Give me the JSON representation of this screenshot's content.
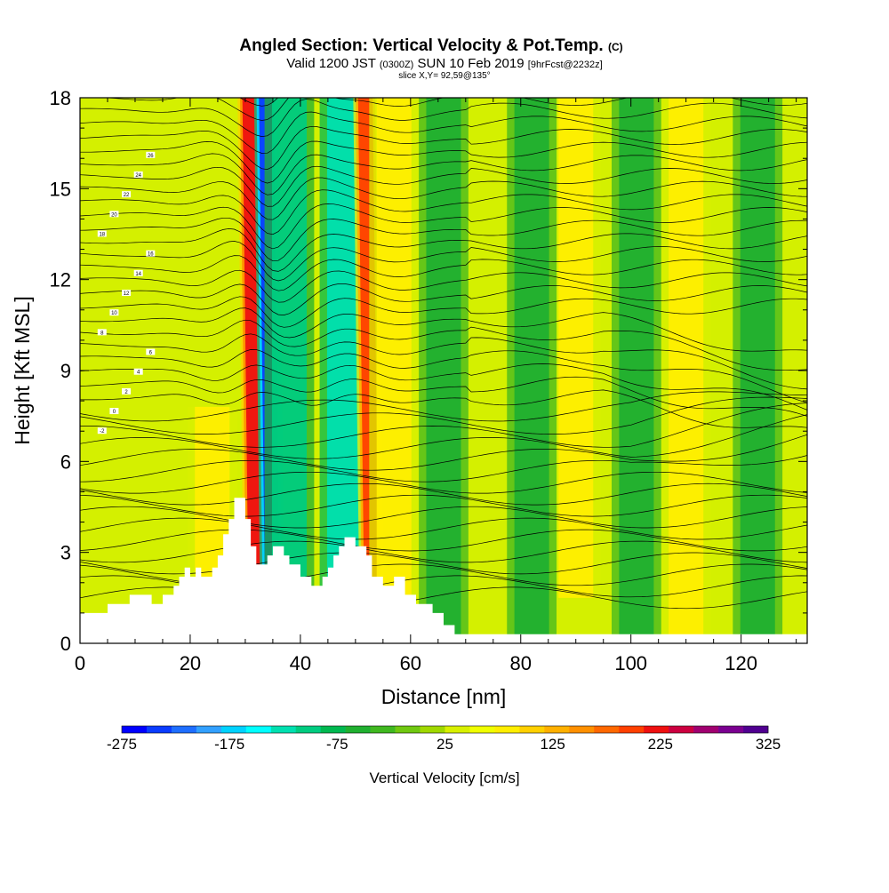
{
  "title_main": "Angled Section: Vertical Velocity & Pot.Temp.",
  "title_unit": "(C)",
  "subtitle_prefix": "Valid 1200 JST",
  "subtitle_utc": "(0300Z)",
  "subtitle_date": "SUN 10 Feb 2019",
  "subtitle_forecast": "[9hrFcst@2232z]",
  "slice_label": "slice X,Y= 92,59@135°",
  "chart_data": {
    "type": "heatmap",
    "xlabel": "Distance [nm]",
    "ylabel": "Height [Kft MSL]",
    "xlim": [
      0,
      132
    ],
    "ylim": [
      0,
      18
    ],
    "x_ticks": [
      "0",
      "20",
      "40",
      "60",
      "80",
      "100",
      "120"
    ],
    "y_ticks": [
      "0",
      "3",
      "6",
      "9",
      "12",
      "15",
      "18"
    ],
    "colorbar": {
      "label": "Vertical Velocity [cm/s]",
      "tick_labels": [
        "-275",
        "-175",
        "-75",
        "25",
        "125",
        "225",
        "325"
      ],
      "range": [
        -275,
        325
      ],
      "colors": [
        "#0000ff",
        "#0a3cff",
        "#1e6eff",
        "#32a0ff",
        "#00d2ff",
        "#00ffff",
        "#00e0b0",
        "#00cc80",
        "#00b850",
        "#20b030",
        "#40b820",
        "#70c810",
        "#a0d800",
        "#d8f000",
        "#f0ff00",
        "#ffee00",
        "#ffd000",
        "#ffb000",
        "#ff9000",
        "#ff6800",
        "#ff4000",
        "#ee1010",
        "#cc0040",
        "#a00070",
        "#7a0090",
        "#500090"
      ]
    },
    "velocity_bands": [
      {
        "x_center": 32,
        "value": 225
      },
      {
        "x_center": 35,
        "value": -250
      },
      {
        "x_center": 38,
        "value": -100
      },
      {
        "x_center": 48,
        "value": -125
      },
      {
        "x_center": 53,
        "value": 200
      },
      {
        "x_center": 57,
        "value": 75
      },
      {
        "x_center": 24,
        "value": 75
      },
      {
        "x_center": 90,
        "value": 75
      },
      {
        "x_center": 110,
        "value": 75
      },
      {
        "x_center": 66,
        "value": -50
      },
      {
        "x_center": 82,
        "value": -50
      },
      {
        "x_center": 101,
        "value": -50
      },
      {
        "x_center": 123,
        "value": -50
      }
    ],
    "contour_labels": [
      "-2",
      "0",
      "2",
      "4",
      "6",
      "8",
      "10",
      "12",
      "14",
      "16",
      "18",
      "20",
      "22",
      "24",
      "26"
    ],
    "terrain_profile": {
      "x": [
        0,
        5,
        5,
        9,
        9,
        13,
        13,
        15,
        15,
        17,
        17,
        18,
        18,
        19,
        19,
        20,
        20,
        21,
        21,
        22,
        22,
        24,
        24,
        25,
        25,
        26,
        26,
        27,
        27,
        28,
        28,
        30,
        30,
        31,
        31,
        32,
        32,
        34,
        34,
        35,
        35,
        37,
        37,
        38,
        38,
        40,
        40,
        42,
        42,
        44,
        44,
        45,
        45,
        46,
        46,
        47,
        47,
        48,
        48,
        49,
        49,
        50,
        50,
        52,
        52,
        53,
        53,
        55,
        55,
        57,
        57,
        59,
        59,
        61,
        61,
        64,
        64,
        66,
        66,
        68,
        68,
        72,
        72,
        132
      ],
      "y": [
        1.0,
        1.0,
        1.3,
        1.3,
        1.6,
        1.6,
        1.3,
        1.3,
        1.6,
        1.6,
        1.9,
        1.9,
        2.2,
        2.2,
        2.5,
        2.5,
        2.2,
        2.2,
        2.5,
        2.5,
        2.2,
        2.2,
        2.5,
        2.5,
        2.9,
        2.9,
        3.6,
        3.6,
        4.1,
        4.1,
        4.8,
        4.8,
        4.1,
        4.1,
        3.2,
        3.2,
        2.6,
        2.6,
        2.9,
        2.9,
        3.2,
        3.2,
        2.9,
        2.9,
        2.6,
        2.6,
        2.2,
        2.2,
        1.9,
        1.9,
        2.2,
        2.2,
        2.5,
        2.5,
        2.9,
        2.9,
        3.2,
        3.2,
        3.5,
        3.5,
        3.5,
        3.5,
        3.2,
        3.2,
        2.9,
        2.9,
        2.2,
        2.2,
        1.9,
        1.9,
        2.2,
        2.2,
        1.6,
        1.6,
        1.3,
        1.3,
        1.0,
        1.0,
        0.6,
        0.6,
        0.3,
        0.3,
        0.3,
        0.3
      ]
    }
  }
}
